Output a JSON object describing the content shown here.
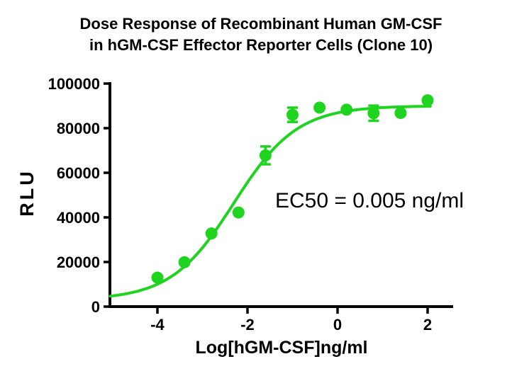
{
  "title": {
    "line1": "Dose Response of Recombinant Human GM-CSF",
    "line2": "in hGM-CSF Effector Reporter Cells (Clone 10)"
  },
  "annotation": {
    "text": "EC50 = 0.005 ng/ml"
  },
  "chart_data": {
    "type": "scatter",
    "title": "Dose Response of Recombinant Human GM-CSF in hGM-CSF Effector Reporter Cells (Clone 10)",
    "xlabel": "Log[hGM-CSF]ng/ml",
    "ylabel": "RLU",
    "xlim": [
      -5.05,
      2.55
    ],
    "ylim": [
      0,
      100000
    ],
    "grid": false,
    "legend": "none",
    "series_color": "#1fd41f",
    "axis_color": "#000000",
    "xticks": [
      {
        "v": -4,
        "label": "-4"
      },
      {
        "v": -2,
        "label": "-2"
      },
      {
        "v": 0,
        "label": "0"
      },
      {
        "v": 2,
        "label": "2"
      }
    ],
    "yticks": [
      {
        "v": 0,
        "label": "0"
      },
      {
        "v": 20000,
        "label": "20000"
      },
      {
        "v": 40000,
        "label": "40000"
      },
      {
        "v": 60000,
        "label": "60000"
      },
      {
        "v": 80000,
        "label": "80000"
      },
      {
        "v": 100000,
        "label": "100000"
      }
    ],
    "points": [
      {
        "x": -4.0,
        "y": 13000
      },
      {
        "x": -3.4,
        "y": 19900
      },
      {
        "x": -2.8,
        "y": 32800
      },
      {
        "x": -2.2,
        "y": 42200
      },
      {
        "x": -1.6,
        "y": 67800,
        "err": 4000
      },
      {
        "x": -1.0,
        "y": 86000,
        "err": 3200
      },
      {
        "x": -0.4,
        "y": 89200
      },
      {
        "x": 0.2,
        "y": 88300
      },
      {
        "x": 0.8,
        "y": 86700,
        "err": 3400
      },
      {
        "x": 1.4,
        "y": 86800
      },
      {
        "x": 2.0,
        "y": 92500
      }
    ],
    "fit": {
      "model": "4PL-logistic",
      "bottom": 3000,
      "top": 90000,
      "log_ec50": -2.3,
      "hill": 0.62,
      "x_start": -5.05,
      "x_end": 2.06
    },
    "ec50_label": "EC50 = 0.005 ng/ml"
  }
}
